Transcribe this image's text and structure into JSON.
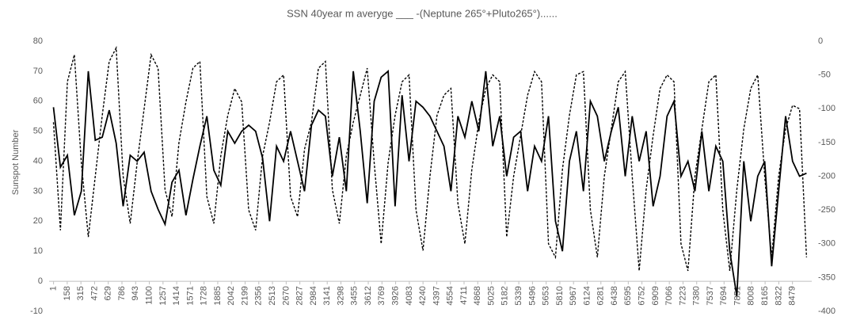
{
  "chart_data": {
    "type": "line",
    "title": "SSN 40year m averyge ___      -(Neptune 265°+Pluto265°)......",
    "y_label": "Sunspot  Number",
    "x": [
      0,
      80,
      160,
      240,
      320,
      400,
      480,
      560,
      640,
      720,
      800,
      880,
      960,
      1040,
      1120,
      1200,
      1280,
      1360,
      1440,
      1520,
      1600,
      1680,
      1760,
      1840,
      1920,
      2000,
      2080,
      2160,
      2240,
      2320,
      2400,
      2480,
      2560,
      2640,
      2720,
      2800,
      2880,
      2960,
      3040,
      3120,
      3200,
      3280,
      3360,
      3440,
      3520,
      3600,
      3680,
      3760,
      3840,
      3920,
      4000,
      4080,
      4160,
      4240,
      4320,
      4400,
      4480,
      4560,
      4640,
      4720,
      4800,
      4880,
      4960,
      5040,
      5120,
      5200,
      5280,
      5360,
      5440,
      5520,
      5600,
      5680,
      5760,
      5840,
      5920,
      6000,
      6080,
      6160,
      6240,
      6320,
      6400,
      6480,
      6560,
      6640,
      6720,
      6800,
      6880,
      6960,
      7040,
      7120,
      7200,
      7280,
      7360,
      7440,
      7520,
      7600,
      7680,
      7760,
      7840,
      7920,
      8000,
      8080,
      8160,
      8240,
      8320,
      8400,
      8480,
      8560,
      8640
    ],
    "xlim": [
      -50,
      8700
    ],
    "xticks": [
      1,
      158,
      315,
      472,
      629,
      786,
      943,
      1100,
      1257,
      1414,
      1571,
      1728,
      1885,
      2042,
      2199,
      2356,
      2513,
      2670,
      2827,
      2984,
      3141,
      3298,
      3455,
      3612,
      3769,
      3926,
      4083,
      4240,
      4397,
      4554,
      4711,
      4868,
      5025,
      5182,
      5339,
      5496,
      5653,
      5810,
      5967,
      6124,
      6281,
      6438,
      6595,
      6752,
      6909,
      7066,
      7223,
      7380,
      7537,
      7694,
      7851,
      8008,
      8165,
      8322,
      8479
    ],
    "ylim": [
      -10,
      80
    ],
    "yticks": [
      -10,
      0,
      10,
      20,
      30,
      40,
      50,
      60,
      70,
      80
    ],
    "y2lim": [
      -400,
      0
    ],
    "y2ticks": [
      -400,
      -350,
      -300,
      -250,
      -200,
      -150,
      -100,
      -50,
      0
    ],
    "grid": false,
    "series": [
      {
        "color": "#000000",
        "style": "solid",
        "values": [
          58,
          38,
          42,
          22,
          30,
          70,
          47,
          48,
          57,
          46,
          25,
          42,
          40,
          43,
          30,
          24,
          19,
          33,
          37,
          22,
          34,
          45,
          55,
          37,
          32,
          50,
          46,
          50,
          52,
          50,
          41,
          20,
          45,
          40,
          50,
          40,
          30,
          52,
          57,
          55,
          35,
          48,
          30,
          70,
          50,
          26,
          60,
          68,
          70,
          25,
          62,
          40,
          60,
          58,
          55,
          50,
          45,
          30,
          55,
          48,
          60,
          50,
          70,
          45,
          55,
          35,
          48,
          50,
          30,
          45,
          40,
          55,
          20,
          10,
          40,
          50,
          30,
          60,
          55,
          40,
          50,
          58,
          35,
          55,
          40,
          50,
          25,
          35,
          55,
          60,
          35,
          40,
          30,
          50,
          30,
          45,
          40,
          10,
          -5,
          40,
          20,
          35,
          40,
          5,
          30,
          55,
          40,
          35,
          36
        ]
      },
      {
        "color": "#000000",
        "style": "dashed",
        "axis": "y2",
        "values": [
          -120,
          -280,
          -60,
          -20,
          -180,
          -290,
          -200,
          -110,
          -30,
          -10,
          -200,
          -270,
          -180,
          -100,
          -20,
          -40,
          -220,
          -260,
          -150,
          -90,
          -40,
          -30,
          -230,
          -270,
          -170,
          -110,
          -70,
          -90,
          -250,
          -280,
          -170,
          -120,
          -60,
          -50,
          -230,
          -260,
          -160,
          -120,
          -40,
          -30,
          -220,
          -270,
          -170,
          -120,
          -80,
          -40,
          -180,
          -300,
          -180,
          -110,
          -60,
          -50,
          -250,
          -310,
          -200,
          -110,
          -80,
          -70,
          -240,
          -300,
          -190,
          -120,
          -70,
          -50,
          -60,
          -290,
          -200,
          -140,
          -80,
          -45,
          -60,
          -300,
          -320,
          -190,
          -110,
          -50,
          -45,
          -250,
          -320,
          -200,
          -130,
          -60,
          -45,
          -200,
          -340,
          -220,
          -140,
          -70,
          -50,
          -60,
          -300,
          -340,
          -200,
          -130,
          -60,
          -50,
          -250,
          -340,
          -220,
          -130,
          -70,
          -50,
          -200,
          -320,
          -200,
          -130,
          -95,
          -100,
          -320
        ]
      }
    ]
  }
}
